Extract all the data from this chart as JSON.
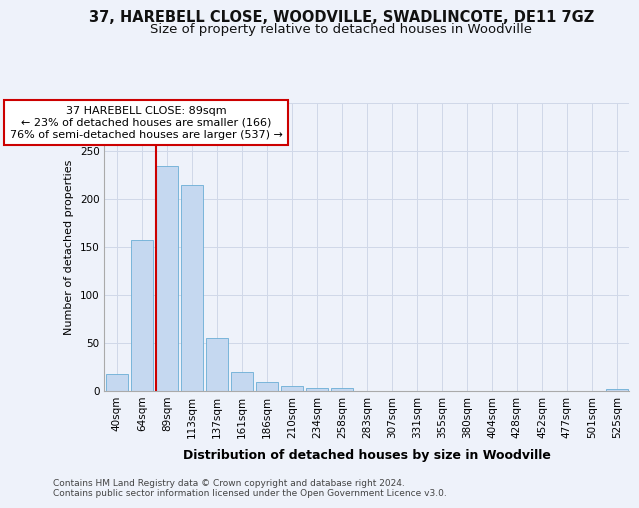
{
  "title": "37, HAREBELL CLOSE, WOODVILLE, SWADLINCOTE, DE11 7GZ",
  "subtitle": "Size of property relative to detached houses in Woodville",
  "xlabel": "Distribution of detached houses by size in Woodville",
  "ylabel": "Number of detached properties",
  "categories": [
    "40sqm",
    "64sqm",
    "89sqm",
    "113sqm",
    "137sqm",
    "161sqm",
    "186sqm",
    "210sqm",
    "234sqm",
    "258sqm",
    "283sqm",
    "307sqm",
    "331sqm",
    "355sqm",
    "380sqm",
    "404sqm",
    "428sqm",
    "452sqm",
    "477sqm",
    "501sqm",
    "525sqm"
  ],
  "values": [
    17,
    157,
    234,
    214,
    55,
    19,
    9,
    5,
    3,
    3,
    0,
    0,
    0,
    0,
    0,
    0,
    0,
    0,
    0,
    0,
    2
  ],
  "bar_color": "#c5d8f0",
  "bar_edge_color": "#6aaed6",
  "highlight_index": 2,
  "highlight_color": "#cc0000",
  "annotation_line1": "37 HAREBELL CLOSE: 89sqm",
  "annotation_line2": "← 23% of detached houses are smaller (166)",
  "annotation_line3": "76% of semi-detached houses are larger (537) →",
  "annotation_box_facecolor": "#ffffff",
  "annotation_box_edgecolor": "#cc0000",
  "grid_color": "#d0d8e8",
  "background_color": "#eef2fa",
  "plot_bg_color": "#eef2fa",
  "footer_line1": "Contains HM Land Registry data © Crown copyright and database right 2024.",
  "footer_line2": "Contains public sector information licensed under the Open Government Licence v3.0.",
  "ylim": [
    0,
    300
  ],
  "yticks": [
    0,
    50,
    100,
    150,
    200,
    250,
    300
  ],
  "title_fontsize": 10.5,
  "subtitle_fontsize": 9.5,
  "xlabel_fontsize": 9,
  "ylabel_fontsize": 8,
  "tick_fontsize": 7.5,
  "annotation_fontsize": 8,
  "footer_fontsize": 6.5
}
